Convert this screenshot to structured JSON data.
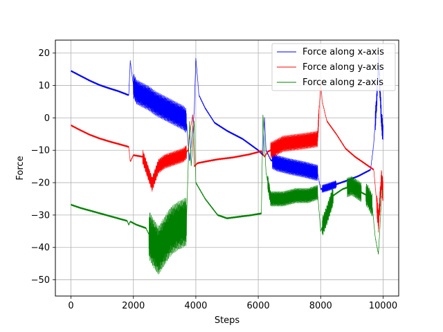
{
  "chart_data": {
    "type": "line",
    "xlabel": "Steps",
    "ylabel": "Force",
    "xlim": [
      -500,
      10500
    ],
    "ylim": [
      -55,
      24
    ],
    "xticks": [
      0,
      2000,
      4000,
      6000,
      8000,
      10000
    ],
    "xtick_labels": [
      "0",
      "2000",
      "4000",
      "6000",
      "8000",
      "10000"
    ],
    "yticks": [
      20,
      10,
      0,
      -10,
      -20,
      -30,
      -40,
      -50
    ],
    "ytick_labels": [
      "20",
      "10",
      "0",
      "−10",
      "−20",
      "−30",
      "−40",
      "−50"
    ],
    "grid": true,
    "legend_position": "top-right",
    "series": [
      {
        "name": "Force along x-axis",
        "color": "#0000ff",
        "points": [
          [
            0,
            14.5
          ],
          [
            300,
            13
          ],
          [
            600,
            11.5
          ],
          [
            900,
            10.2
          ],
          [
            1200,
            9.2
          ],
          [
            1500,
            8.3
          ],
          [
            1800,
            7.2
          ],
          [
            1850,
            7
          ],
          [
            1900,
            17.5
          ],
          [
            2000,
            10
          ],
          [
            2100,
            8
          ],
          [
            2300,
            7
          ],
          [
            2500,
            6
          ],
          [
            2700,
            4.5
          ],
          [
            3000,
            3
          ],
          [
            3300,
            1.5
          ],
          [
            3600,
            0
          ],
          [
            3700,
            -1
          ],
          [
            3800,
            -13.5
          ],
          [
            3950,
            2
          ],
          [
            4000,
            18.5
          ],
          [
            4100,
            7
          ],
          [
            4300,
            3
          ],
          [
            4600,
            -1.5
          ],
          [
            5000,
            -4
          ],
          [
            5500,
            -6.5
          ],
          [
            6000,
            -10
          ],
          [
            6150,
            -11.5
          ],
          [
            6200,
            0
          ],
          [
            6250,
            -10
          ],
          [
            6400,
            -13
          ],
          [
            6600,
            -14
          ],
          [
            7000,
            -15
          ],
          [
            7500,
            -16
          ],
          [
            7900,
            -17
          ],
          [
            8000,
            -22
          ],
          [
            8200,
            -21.5
          ],
          [
            8500,
            -20.5
          ],
          [
            8800,
            -19.5
          ],
          [
            9200,
            -18
          ],
          [
            9600,
            -16
          ],
          [
            9700,
            -8
          ],
          [
            9800,
            6
          ],
          [
            9850,
            18
          ],
          [
            9950,
            -1
          ],
          [
            10000,
            -5
          ]
        ],
        "oscillation": [
          [
            2000,
            3700,
            3.8
          ],
          [
            6450,
            7900,
            2.5
          ],
          [
            8050,
            8500,
            1.2
          ],
          [
            9750,
            10000,
            3.5
          ]
        ]
      },
      {
        "name": "Force along y-axis",
        "color": "#ff0000",
        "points": [
          [
            0,
            -2.3
          ],
          [
            300,
            -3.8
          ],
          [
            600,
            -5.2
          ],
          [
            900,
            -6.3
          ],
          [
            1200,
            -7.2
          ],
          [
            1500,
            -8
          ],
          [
            1800,
            -8.8
          ],
          [
            1850,
            -9
          ],
          [
            1900,
            -13.5
          ],
          [
            2000,
            -11.5
          ],
          [
            2300,
            -12
          ],
          [
            2600,
            -20.5
          ],
          [
            2800,
            -15
          ],
          [
            3000,
            -13.5
          ],
          [
            3300,
            -12.5
          ],
          [
            3600,
            -11.5
          ],
          [
            3750,
            -10
          ],
          [
            3850,
            -2
          ],
          [
            3900,
            1
          ],
          [
            3950,
            -15
          ],
          [
            4050,
            -14
          ],
          [
            4300,
            -13.5
          ],
          [
            4700,
            -12.8
          ],
          [
            5200,
            -12.2
          ],
          [
            5700,
            -11.3
          ],
          [
            6100,
            -10.3
          ],
          [
            6200,
            -12
          ],
          [
            6300,
            -10.5
          ],
          [
            6500,
            -9.5
          ],
          [
            6800,
            -8
          ],
          [
            7200,
            -7.5
          ],
          [
            7600,
            -7
          ],
          [
            7900,
            -6.5
          ],
          [
            8000,
            11
          ],
          [
            8050,
            5
          ],
          [
            8200,
            -1
          ],
          [
            8500,
            -5
          ],
          [
            8800,
            -9.5
          ],
          [
            9100,
            -12
          ],
          [
            9400,
            -14
          ],
          [
            9700,
            -16
          ],
          [
            9850,
            -32
          ],
          [
            9950,
            -19
          ],
          [
            10000,
            -23
          ]
        ],
        "oscillation": [
          [
            2300,
            3700,
            2.2
          ],
          [
            6400,
            7950,
            2.5
          ],
          [
            9800,
            10000,
            3.5
          ]
        ]
      },
      {
        "name": "Force along z-axis",
        "color": "#008000",
        "points": [
          [
            0,
            -26.8
          ],
          [
            300,
            -27.8
          ],
          [
            600,
            -28.6
          ],
          [
            900,
            -29.4
          ],
          [
            1200,
            -30.2
          ],
          [
            1500,
            -31
          ],
          [
            1800,
            -31.8
          ],
          [
            1850,
            -33
          ],
          [
            1900,
            -32
          ],
          [
            2100,
            -33
          ],
          [
            2400,
            -34
          ],
          [
            2600,
            -38
          ],
          [
            2800,
            -41
          ],
          [
            3000,
            -38
          ],
          [
            3200,
            -35
          ],
          [
            3400,
            -33.5
          ],
          [
            3700,
            -32
          ],
          [
            3800,
            -1
          ],
          [
            3850,
            -15
          ],
          [
            3950,
            -1
          ],
          [
            4000,
            -20
          ],
          [
            4300,
            -25
          ],
          [
            4700,
            -30
          ],
          [
            5000,
            -31
          ],
          [
            5400,
            -30.5
          ],
          [
            5800,
            -30
          ],
          [
            6100,
            -29.5
          ],
          [
            6150,
            1
          ],
          [
            6250,
            -17
          ],
          [
            6400,
            -25
          ],
          [
            6800,
            -25
          ],
          [
            7200,
            -24
          ],
          [
            7600,
            -24
          ],
          [
            7900,
            -23
          ],
          [
            8000,
            -35
          ],
          [
            8200,
            -30
          ],
          [
            8400,
            -24
          ],
          [
            8700,
            -22
          ],
          [
            9000,
            -21
          ],
          [
            9300,
            -23
          ],
          [
            9500,
            -24
          ],
          [
            9650,
            -27
          ],
          [
            9750,
            -37
          ],
          [
            9850,
            -42
          ],
          [
            9950,
            -25
          ],
          [
            10000,
            -22
          ]
        ],
        "oscillation": [
          [
            2500,
            3700,
            7.5
          ],
          [
            6300,
            7900,
            2.3
          ],
          [
            8050,
            8400,
            3
          ],
          [
            8850,
            9300,
            3
          ],
          [
            9450,
            9650,
            3.5
          ]
        ]
      }
    ]
  }
}
